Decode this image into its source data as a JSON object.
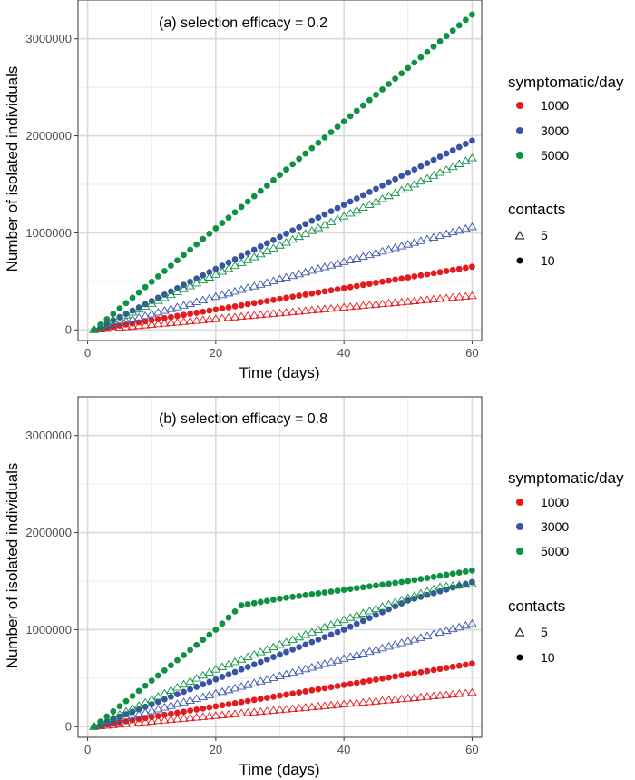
{
  "chart_data": [
    {
      "type": "scatter",
      "title": "(a) selection efficacy = 0.2",
      "xlabel": "Time (days)",
      "ylabel": "Number of isolated individuals",
      "xlim": [
        -1.5,
        61.5
      ],
      "ylim": [
        -110000,
        3400000
      ],
      "xticks": [
        0,
        20,
        40,
        60
      ],
      "xtick_labels": [
        "0",
        "20",
        "40",
        "60"
      ],
      "yticks": [
        0,
        1000000,
        2000000,
        3000000
      ],
      "ytick_labels": [
        "0",
        "1000000",
        "2000000",
        "3000000"
      ],
      "x": {
        "start": 1,
        "end": 60,
        "step": 1
      },
      "series": [
        {
          "name": "1000 / 5 contacts",
          "symptomatic": "1000",
          "contacts": "5",
          "color": "#e41a1c",
          "shape": "triangle",
          "values_at_days": {
            "1": 0,
            "60": 350000
          }
        },
        {
          "name": "1000 / 10 contacts",
          "symptomatic": "1000",
          "contacts": "10",
          "color": "#e41a1c",
          "shape": "circle",
          "values_at_days": {
            "1": 0,
            "60": 650000
          }
        },
        {
          "name": "3000 / 5 contacts",
          "symptomatic": "3000",
          "contacts": "5",
          "color": "#3a53a4",
          "shape": "triangle",
          "values_at_days": {
            "1": 0,
            "60": 1060000
          }
        },
        {
          "name": "3000 / 10 contacts",
          "symptomatic": "3000",
          "contacts": "10",
          "color": "#3a53a4",
          "shape": "circle",
          "values_at_days": {
            "1": 0,
            "60": 1950000
          }
        },
        {
          "name": "5000 / 5 contacts",
          "symptomatic": "5000",
          "contacts": "5",
          "color": "#0e9143",
          "shape": "triangle",
          "values_at_days": {
            "1": 0,
            "60": 1770000
          }
        },
        {
          "name": "5000 / 10 contacts",
          "symptomatic": "5000",
          "contacts": "10",
          "color": "#0e9143",
          "shape": "circle",
          "values_at_days": {
            "1": 0,
            "60": 3250000
          }
        }
      ]
    },
    {
      "type": "scatter",
      "title": "(b) selection efficacy = 0.8",
      "xlabel": "Time (days)",
      "ylabel": "Number of isolated individuals",
      "xlim": [
        -1.5,
        61.5
      ],
      "ylim": [
        -110000,
        3400000
      ],
      "xticks": [
        0,
        20,
        40,
        60
      ],
      "xtick_labels": [
        "0",
        "20",
        "40",
        "60"
      ],
      "yticks": [
        0,
        1000000,
        2000000,
        3000000
      ],
      "ytick_labels": [
        "0",
        "1000000",
        "2000000",
        "3000000"
      ],
      "x": {
        "start": 1,
        "end": 60,
        "step": 1
      },
      "series": [
        {
          "name": "1000 / 5 contacts",
          "symptomatic": "1000",
          "contacts": "5",
          "color": "#e41a1c",
          "shape": "triangle",
          "values_at_days": {
            "1": 0,
            "60": 350000
          }
        },
        {
          "name": "1000 / 10 contacts",
          "symptomatic": "1000",
          "contacts": "10",
          "color": "#e41a1c",
          "shape": "circle",
          "values_at_days": {
            "1": 0,
            "60": 650000
          }
        },
        {
          "name": "3000 / 5 contacts",
          "symptomatic": "3000",
          "contacts": "5",
          "color": "#3a53a4",
          "shape": "triangle",
          "values_at_days": {
            "1": 0,
            "60": 1060000
          }
        },
        {
          "name": "3000 / 10 contacts",
          "symptomatic": "3000",
          "contacts": "10",
          "color": "#3a53a4",
          "shape": "circle",
          "values_at_days": {
            "1": 0,
            "40": 1000000,
            "50": 1300000,
            "60": 1490000
          }
        },
        {
          "name": "5000 / 5 contacts",
          "symptomatic": "5000",
          "contacts": "5",
          "color": "#0e9143",
          "shape": "triangle",
          "values_at_days": {
            "1": 0,
            "20": 590000,
            "40": 1100000,
            "55": 1440000,
            "60": 1470000
          }
        },
        {
          "name": "5000 / 10 contacts",
          "symptomatic": "5000",
          "contacts": "10",
          "color": "#0e9143",
          "shape": "circle",
          "values_at_days": {
            "1": 0,
            "20": 1000000,
            "24": 1250000,
            "30": 1320000,
            "40": 1410000,
            "50": 1500000,
            "60": 1610000
          }
        }
      ]
    }
  ],
  "legend": {
    "color_title": "symptomatic/day",
    "color_items": [
      {
        "label": "1000",
        "color": "#e41a1c"
      },
      {
        "label": "3000",
        "color": "#3a53a4"
      },
      {
        "label": "5000",
        "color": "#0e9143"
      }
    ],
    "shape_title": "contacts",
    "shape_items": [
      {
        "label": "5",
        "shape": "triangle"
      },
      {
        "label": "10",
        "shape": "circle"
      }
    ]
  }
}
